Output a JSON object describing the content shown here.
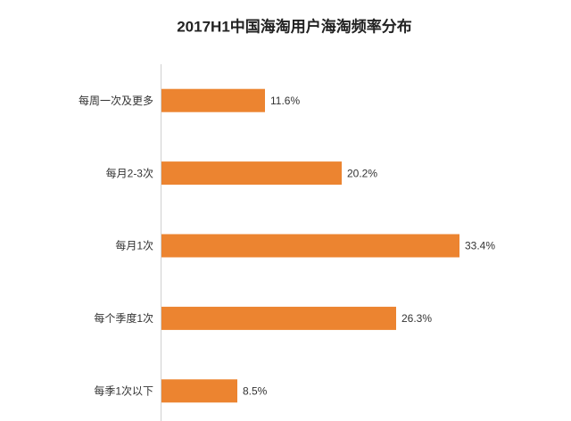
{
  "chart_data": {
    "type": "bar",
    "orientation": "horizontal",
    "title": "2017H1中国海淘用户海淘频率分布",
    "categories": [
      "每周一次及更多",
      "每月2-3次",
      "每月1次",
      "每个季度1次",
      "每季1次以下"
    ],
    "values": [
      11.6,
      20.2,
      33.4,
      26.3,
      8.5
    ],
    "value_labels": [
      "11.6%",
      "20.2%",
      "33.4%",
      "26.3%",
      "8.5%"
    ],
    "color": "#ec8430"
  }
}
